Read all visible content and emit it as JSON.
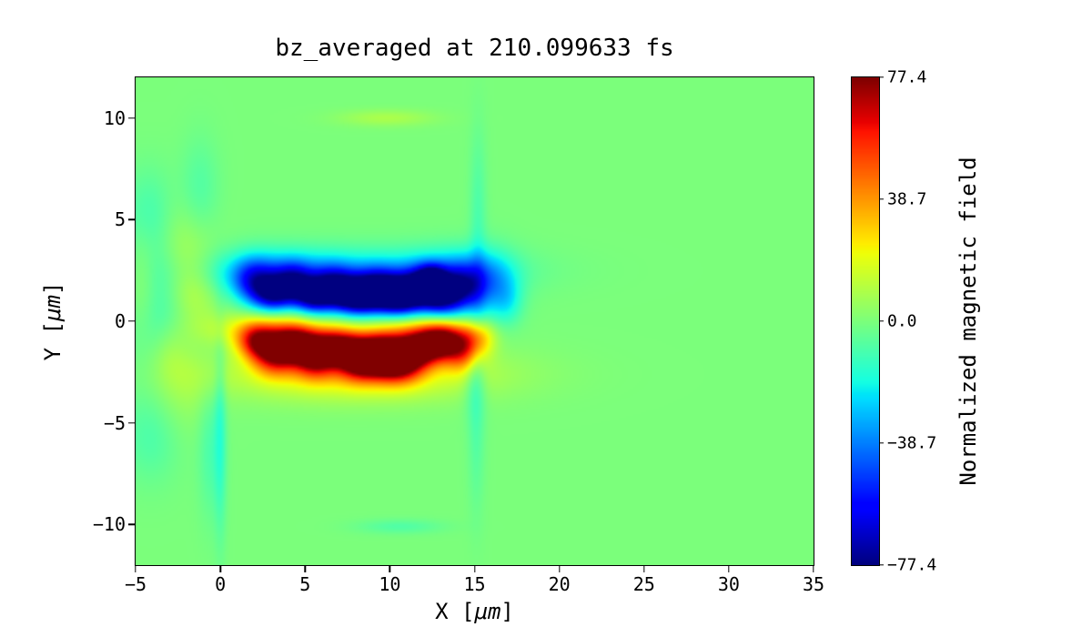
{
  "figure": {
    "title": "bz_averaged at 210.099633 fs",
    "xlabel": {
      "pre": "X [",
      "unit": "μm",
      "post": "]"
    },
    "ylabel": {
      "pre": "Y [",
      "unit": "μm",
      "post": "]"
    },
    "colorbar_label": "Normalized magnetic field"
  },
  "chart_data": {
    "type": "heatmap",
    "title": "bz_averaged at 210.099633 fs",
    "xlabel": "X [μm]",
    "ylabel": "Y [μm]",
    "xlim": [
      -5,
      35
    ],
    "ylim": [
      -12,
      12
    ],
    "x_ticks": [
      -5,
      0,
      5,
      10,
      15,
      20,
      25,
      30,
      35
    ],
    "y_ticks": [
      10,
      5,
      0,
      -5,
      -10
    ],
    "grid": false,
    "colormap": "jet",
    "background_value": 0.0,
    "colorbar": {
      "label": "Normalized magnetic field",
      "vmin": -77.4,
      "vmax": 77.4,
      "ticks": [
        77.4,
        38.7,
        0.0,
        -38.7,
        -77.4
      ]
    },
    "description": "2D field map: negative (blue) filament band at y≈+0.5..+3 and positive (red) filament band at y≈-3..0, both spanning x≈1..16; faint ripples for x<0 and weak vertical streaks near x≈15; background is zero (green).",
    "blob_format": [
      "x_um",
      "y_um",
      "sigma_x_um",
      "sigma_y_um",
      "amplitude"
    ],
    "blobs": [
      [
        2.0,
        1.9,
        0.9,
        0.8,
        -40
      ],
      [
        3.1,
        1.3,
        0.8,
        0.6,
        -52
      ],
      [
        4.3,
        1.8,
        0.8,
        0.7,
        -48
      ],
      [
        5.5,
        1.2,
        0.8,
        0.6,
        -58
      ],
      [
        6.7,
        1.6,
        0.9,
        0.7,
        -62
      ],
      [
        8.0,
        1.2,
        0.9,
        0.6,
        -70
      ],
      [
        9.3,
        1.5,
        1.0,
        0.7,
        -76
      ],
      [
        10.6,
        1.2,
        0.9,
        0.6,
        -72
      ],
      [
        11.8,
        1.6,
        0.9,
        0.7,
        -60
      ],
      [
        13.0,
        1.1,
        0.8,
        0.6,
        -48
      ],
      [
        14.2,
        1.6,
        0.9,
        0.8,
        -52
      ],
      [
        12.5,
        2.0,
        0.6,
        0.5,
        -55
      ],
      [
        8.0,
        2.5,
        5.5,
        0.8,
        -22
      ],
      [
        3.0,
        2.3,
        2.5,
        0.8,
        -18
      ],
      [
        14.0,
        2.3,
        2.0,
        0.9,
        -18
      ],
      [
        16.0,
        1.6,
        1.0,
        1.2,
        -22
      ],
      [
        17.0,
        1.0,
        0.6,
        0.8,
        -12
      ],
      [
        2.1,
        -1.0,
        0.8,
        0.6,
        48
      ],
      [
        3.2,
        -1.6,
        0.9,
        0.7,
        58
      ],
      [
        4.4,
        -1.1,
        0.9,
        0.6,
        62
      ],
      [
        5.6,
        -1.7,
        0.9,
        0.7,
        68
      ],
      [
        6.9,
        -1.2,
        0.9,
        0.6,
        58
      ],
      [
        8.1,
        -1.8,
        0.9,
        0.7,
        66
      ],
      [
        9.4,
        -1.6,
        1.0,
        0.7,
        77
      ],
      [
        10.6,
        -1.9,
        1.0,
        0.7,
        72
      ],
      [
        11.9,
        -1.3,
        0.9,
        0.6,
        62
      ],
      [
        13.1,
        -1.0,
        0.8,
        0.6,
        55
      ],
      [
        14.3,
        -1.4,
        0.8,
        0.7,
        46
      ],
      [
        8.0,
        -2.6,
        5.5,
        0.9,
        24
      ],
      [
        3.0,
        -0.4,
        2.5,
        0.6,
        26
      ],
      [
        12.0,
        -0.5,
        2.0,
        0.5,
        24
      ],
      [
        15.2,
        -0.8,
        0.7,
        0.6,
        26
      ],
      [
        -3.6,
        0.3,
        1.4,
        2.6,
        -12
      ],
      [
        -2.1,
        3.4,
        1.2,
        1.6,
        10
      ],
      [
        -2.6,
        -3.2,
        1.4,
        1.6,
        9
      ],
      [
        -4.3,
        5.2,
        1.0,
        1.6,
        -10
      ],
      [
        -4.1,
        -5.6,
        1.2,
        1.6,
        -9
      ],
      [
        -1.2,
        6.4,
        0.8,
        1.8,
        -8
      ],
      [
        -0.6,
        -6.2,
        0.5,
        2.4,
        -9
      ],
      [
        -1.6,
        1.4,
        1.0,
        1.2,
        11
      ],
      [
        -3.0,
        -1.5,
        0.8,
        1.0,
        8
      ],
      [
        0.0,
        -5.5,
        0.25,
        3.5,
        -13
      ],
      [
        -4.6,
        2.0,
        0.6,
        2.0,
        9
      ],
      [
        15.2,
        4.8,
        0.35,
        3.2,
        -9
      ],
      [
        15.1,
        -4.8,
        0.35,
        3.2,
        -8
      ],
      [
        9.8,
        10.0,
        2.0,
        0.28,
        9
      ],
      [
        10.6,
        -10.1,
        1.8,
        0.25,
        -8
      ],
      [
        15.0,
        -2.8,
        0.5,
        1.2,
        -10
      ]
    ]
  }
}
